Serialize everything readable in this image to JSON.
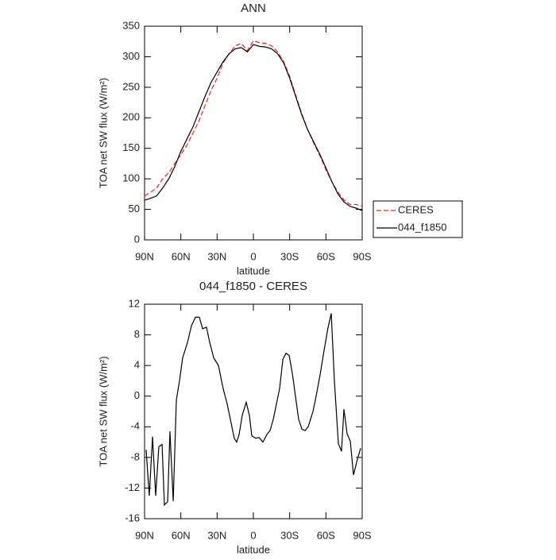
{
  "chart_data": [
    {
      "type": "line",
      "title": "ANN",
      "xlabel": "latitude",
      "ylabel": "TOA net SW flux (W/m²)",
      "x": [
        90,
        85,
        80,
        75,
        70,
        65,
        60,
        55,
        50,
        45,
        40,
        35,
        30,
        25,
        20,
        15,
        10,
        5,
        0,
        -5,
        -10,
        -15,
        -20,
        -25,
        -30,
        -35,
        -40,
        -45,
        -50,
        -55,
        -60,
        -65,
        -70,
        -75,
        -80,
        -85,
        -90
      ],
      "series": [
        {
          "name": "CERES",
          "color": "#e8261e",
          "dash": "dashed",
          "values": [
            72,
            78,
            85,
            100,
            110,
            125,
            140,
            155,
            175,
            195,
            220,
            245,
            265,
            290,
            305,
            318,
            322,
            310,
            326,
            323,
            322,
            318,
            308,
            292,
            268,
            237,
            207,
            180,
            158,
            138,
            115,
            95,
            78,
            65,
            58,
            58,
            55
          ]
        },
        {
          "name": "044_f1850",
          "color": "#000000",
          "dash": "solid",
          "values": [
            65,
            68,
            72,
            85,
            100,
            120,
            145,
            165,
            185,
            210,
            235,
            258,
            275,
            292,
            305,
            313,
            315,
            308,
            320,
            317,
            316,
            313,
            305,
            290,
            265,
            235,
            205,
            180,
            160,
            140,
            118,
            95,
            75,
            62,
            55,
            52,
            48
          ]
        }
      ],
      "xlim": [
        90,
        -90
      ],
      "xticks": [
        {
          "value": 90,
          "label": "90N"
        },
        {
          "value": 60,
          "label": "60N"
        },
        {
          "value": 30,
          "label": "30N"
        },
        0,
        {
          "value": -30,
          "label": "30S"
        },
        {
          "value": -60,
          "label": "60S"
        },
        {
          "value": -90,
          "label": "90S"
        }
      ],
      "ylim": [
        0,
        350
      ],
      "yticks": [
        0,
        50,
        100,
        150,
        200,
        250,
        300,
        350
      ],
      "legend": "right"
    },
    {
      "type": "line",
      "title": "044_f1850 - CERES",
      "xlabel": "latitude",
      "ylabel": "TOA net SW flux (W/m²)",
      "x": [
        88.7,
        86.1,
        83.4,
        80.8,
        78.2,
        75.5,
        73.6,
        70.9,
        69.0,
        66.3,
        63.7,
        61.1,
        58.5,
        54.5,
        51.2,
        47.9,
        44.7,
        42.0,
        38.8,
        36.1,
        32.8,
        28.9,
        25.0,
        21.7,
        19.1,
        15.8,
        13.8,
        11.8,
        9.2,
        5.9,
        3.3,
        1.3,
        -2.0,
        -4.6,
        -7.9,
        -11.2,
        -13.8,
        -16.5,
        -19.1,
        -21.7,
        -24.4,
        -27.0,
        -29.6,
        -32.2,
        -34.8,
        -37.4,
        -40.1,
        -42.7,
        -45.3,
        -49.3,
        -51.9,
        -55.2,
        -58.5,
        -61.8,
        -64.4,
        -67.0,
        -70.3,
        -72.9,
        -74.9,
        -77.5,
        -80.2,
        -82.8,
        -86.1,
        -88.7
      ],
      "values": [
        -7,
        -13,
        -5.3,
        -13,
        -6.6,
        -6.3,
        -14.2,
        -13.8,
        -4.6,
        -13.7,
        -0.5,
        2,
        5,
        7,
        9.2,
        10.3,
        10.3,
        8.8,
        9,
        7,
        5,
        4,
        1,
        -1,
        -3,
        -5.5,
        -6,
        -5,
        -2.5,
        -0.8,
        -2.5,
        -5.2,
        -5.5,
        -5.4,
        -6,
        -5,
        -4.5,
        -3,
        -1,
        1,
        4.8,
        5.6,
        5.3,
        3,
        0,
        -3,
        -4.3,
        -4.5,
        -4,
        -2,
        0,
        2.8,
        6,
        9,
        10.8,
        2,
        -6.2,
        -7.2,
        -1.7,
        -4.9,
        -5.9,
        -10.3,
        -8.2,
        -6.8
      ],
      "color": "#000000",
      "xlim": [
        90,
        -90
      ],
      "xticks": [
        {
          "value": 90,
          "label": "90N"
        },
        {
          "value": 60,
          "label": "60N"
        },
        {
          "value": 30,
          "label": "30N"
        },
        0,
        {
          "value": -30,
          "label": "30S"
        },
        {
          "value": -60,
          "label": "60S"
        },
        {
          "value": -90,
          "label": "90S"
        }
      ],
      "ylim": [
        -16,
        12
      ],
      "yticks": [
        -16,
        -12,
        -8,
        -4,
        0,
        4,
        8,
        12
      ]
    }
  ]
}
